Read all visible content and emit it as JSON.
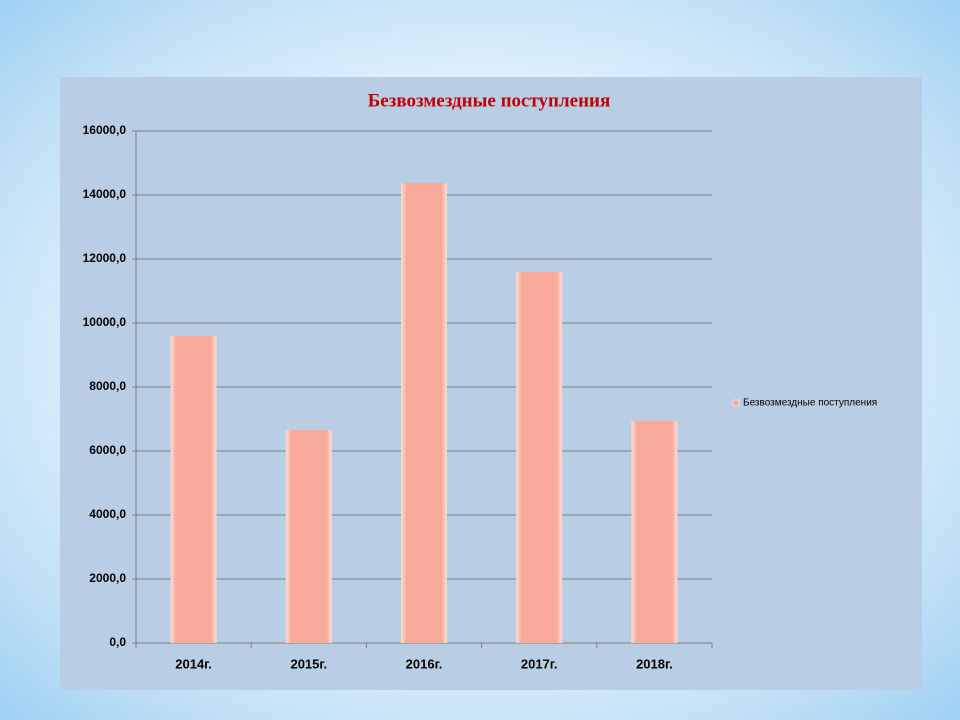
{
  "chart_data": {
    "type": "bar",
    "title": "Безвозмездные поступления",
    "categories": [
      "2014г.",
      "2015г.",
      "2016г.",
      "2017г.",
      "2018г."
    ],
    "series": [
      {
        "name": "Безвозмездные поступления",
        "color": "#f9a99a",
        "values": [
          9600,
          6650,
          14370,
          11600,
          6940
        ]
      }
    ],
    "ylim": [
      0,
      16000
    ],
    "yticks": [
      {
        "value": 0,
        "label": "0,0"
      },
      {
        "value": 2000,
        "label": "2000,0"
      },
      {
        "value": 4000,
        "label": "4000,0"
      },
      {
        "value": 6000,
        "label": "6000,0"
      },
      {
        "value": 8000,
        "label": "8000,0"
      },
      {
        "value": 10000,
        "label": "10000,0"
      },
      {
        "value": 12000,
        "label": "12000,0"
      },
      {
        "value": 14000,
        "label": "14000,0"
      },
      {
        "value": 16000,
        "label": "16000,0"
      }
    ],
    "grid": true,
    "legend": "right"
  }
}
